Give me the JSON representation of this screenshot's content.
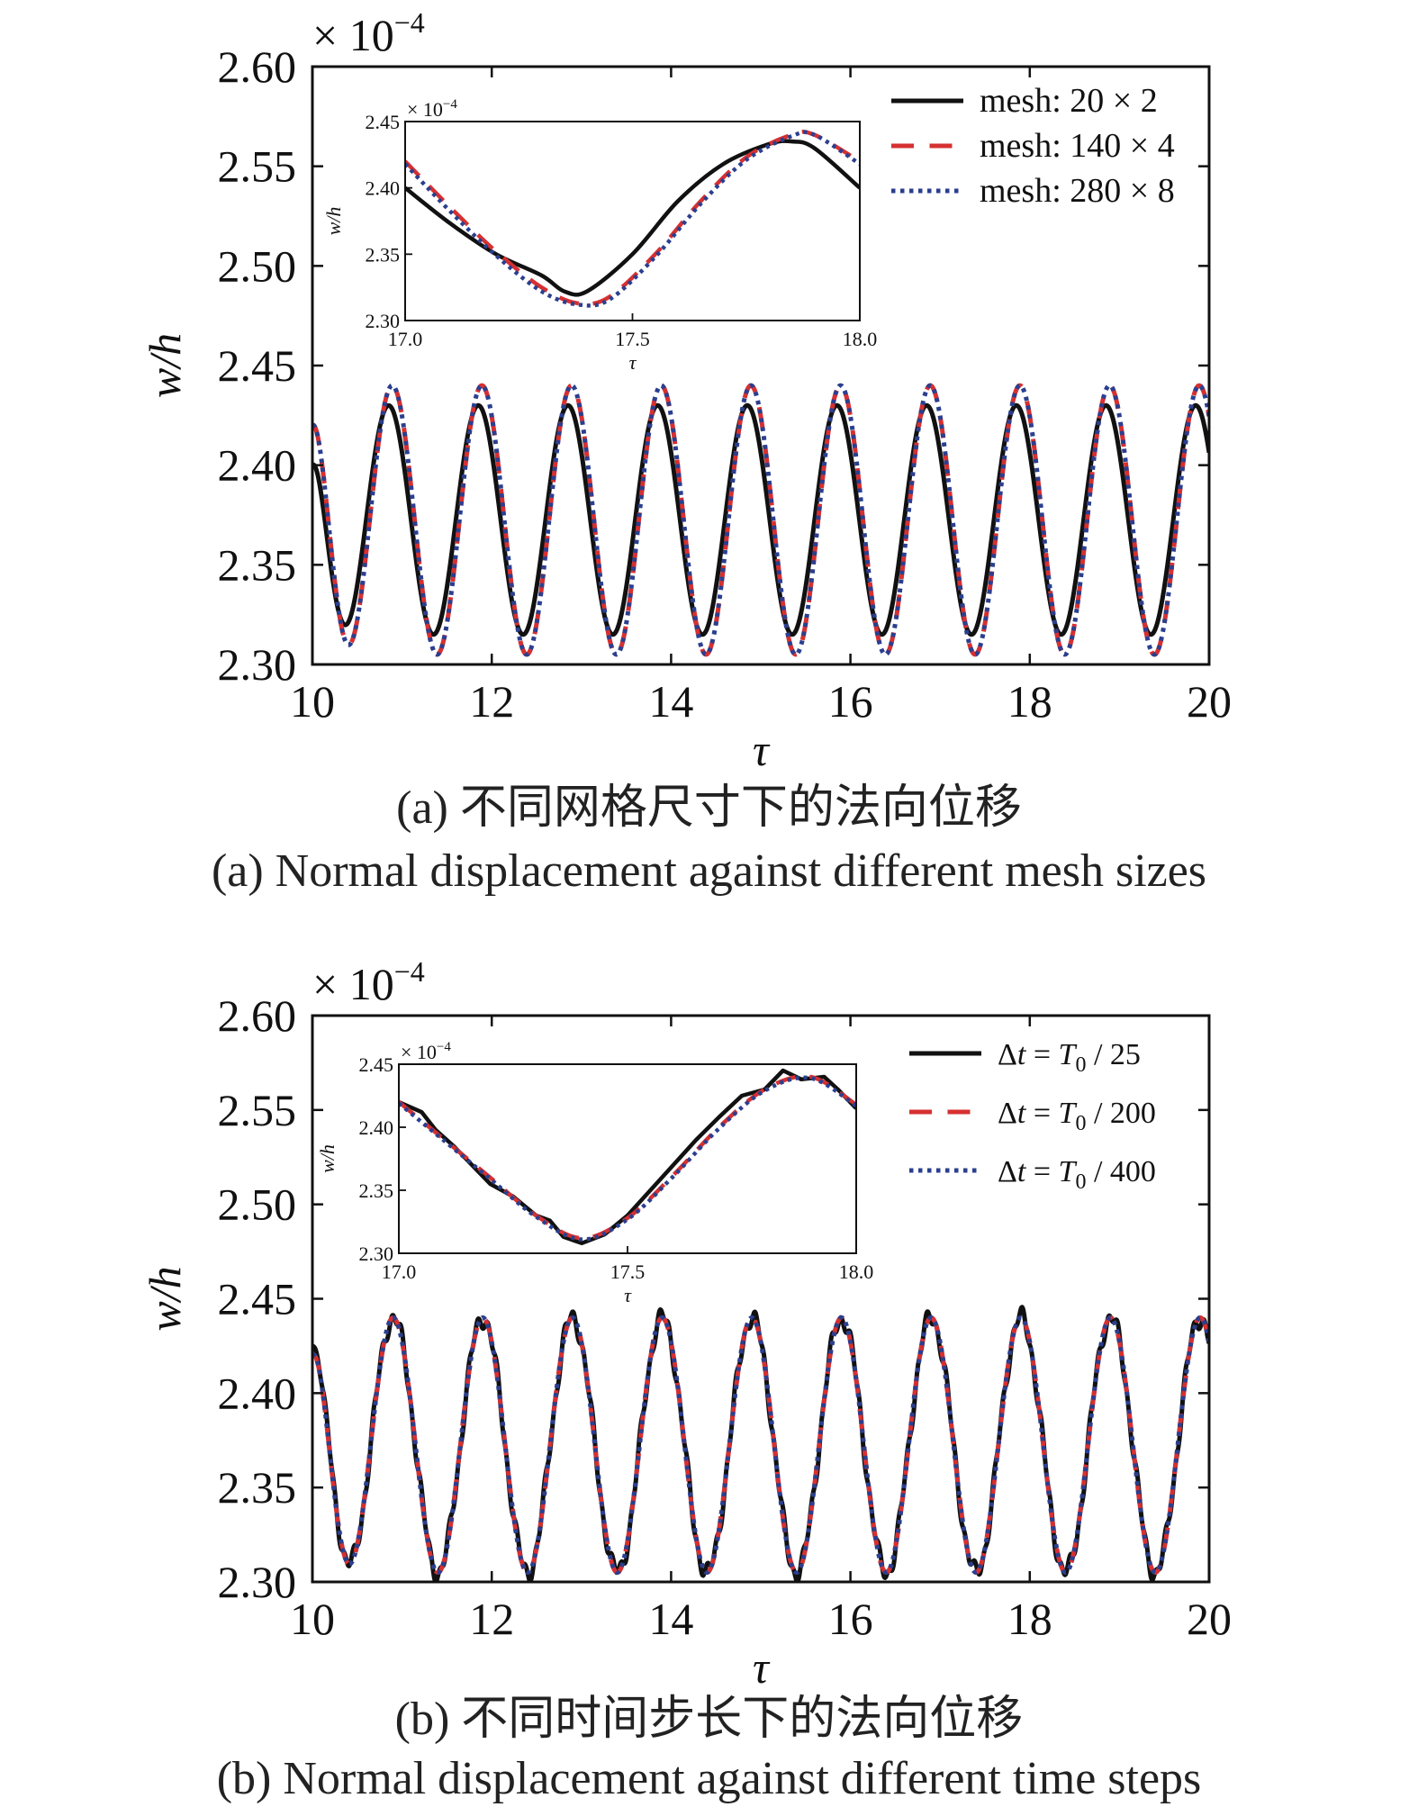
{
  "chart_data": [
    {
      "type": "line",
      "caption_zh": "(a) 不同网格尺寸下的法向位移",
      "caption_en": "(a) Normal displacement against different mesh sizes",
      "xlabel": "τ",
      "ylabel": "w/h",
      "multiplier": "× 10",
      "multiplier_exp": "−4",
      "xlim": [
        10,
        20
      ],
      "ylim": [
        2.3,
        2.6
      ],
      "xticks": [
        "10",
        "12",
        "14",
        "16",
        "18",
        "20"
      ],
      "yticks": [
        "2.30",
        "2.35",
        "2.40",
        "2.45",
        "2.50",
        "2.55",
        "2.60"
      ],
      "legend_position": "top-right",
      "series": [
        {
          "name": "mesh: 20 × 2",
          "color": "#111111",
          "style": "solid",
          "period": 1.0,
          "phase": 10.85,
          "max": 2.43,
          "min": 2.315,
          "start": 2.4,
          "noise": 0
        },
        {
          "name": "mesh: 140 × 4",
          "color": "#d63031",
          "style": "dashed",
          "period": 1.0,
          "phase": 10.89,
          "max": 2.44,
          "min": 2.305,
          "start": 2.42,
          "noise": 0
        },
        {
          "name": "mesh: 280 × 8",
          "color": "#2b3f8f",
          "style": "dotted",
          "period": 1.0,
          "phase": 10.89,
          "max": 2.44,
          "min": 2.305,
          "start": 2.42,
          "noise": 0
        }
      ],
      "inset": {
        "xlabel": "τ",
        "ylabel": "w/h",
        "multiplier": "× 10",
        "multiplier_exp": "−4",
        "xlim": [
          17.0,
          18.0
        ],
        "ylim": [
          2.3,
          2.45
        ],
        "xticks": [
          "17.0",
          "17.5",
          "18.0"
        ],
        "yticks": [
          "2.30",
          "2.35",
          "2.40",
          "2.45"
        ],
        "series": [
          {
            "name": "mesh: 20 × 2",
            "x": [
              17.0,
              17.1,
              17.2,
              17.3,
              17.35,
              17.4,
              17.5,
              17.6,
              17.7,
              17.8,
              17.85,
              17.9,
              18.0
            ],
            "y": [
              2.4,
              2.373,
              2.35,
              2.334,
              2.322,
              2.322,
              2.35,
              2.39,
              2.418,
              2.433,
              2.435,
              2.43,
              2.4
            ]
          },
          {
            "name": "mesh: 140 × 4",
            "x": [
              17.0,
              17.1,
              17.2,
              17.3,
              17.38,
              17.45,
              17.55,
              17.65,
              17.75,
              17.85,
              17.9,
              18.0
            ],
            "y": [
              2.42,
              2.385,
              2.352,
              2.325,
              2.313,
              2.318,
              2.35,
              2.39,
              2.423,
              2.44,
              2.44,
              2.42
            ]
          },
          {
            "name": "mesh: 280 × 8",
            "x": [
              17.0,
              17.1,
              17.2,
              17.3,
              17.38,
              17.45,
              17.55,
              17.65,
              17.75,
              17.85,
              17.9,
              18.0
            ],
            "y": [
              2.418,
              2.382,
              2.349,
              2.322,
              2.312,
              2.316,
              2.348,
              2.388,
              2.421,
              2.439,
              2.44,
              2.418
            ]
          }
        ]
      }
    },
    {
      "type": "line",
      "caption_zh": "(b) 不同时间步长下的法向位移",
      "caption_en": "(b) Normal displacement against different time steps",
      "xlabel": "τ",
      "ylabel": "w/h",
      "multiplier": "× 10",
      "multiplier_exp": "−4",
      "xlim": [
        10,
        20
      ],
      "ylim": [
        2.3,
        2.6
      ],
      "xticks": [
        "10",
        "12",
        "14",
        "16",
        "18",
        "20"
      ],
      "yticks": [
        "2.30",
        "2.35",
        "2.40",
        "2.45",
        "2.50",
        "2.55",
        "2.60"
      ],
      "legend_position": "top-right",
      "series": [
        {
          "name": "Δt = T0 / 25",
          "legend_parts": [
            "Δ",
            "t",
            " = ",
            "T",
            "0",
            " / 25"
          ],
          "color": "#111111",
          "style": "solid",
          "period": 1.0,
          "phase": 10.9,
          "max": 2.44,
          "min": 2.305,
          "start": 2.425,
          "noise": 0.006
        },
        {
          "name": "Δt = T0 / 200",
          "legend_parts": [
            "Δ",
            "t",
            " = ",
            "T",
            "0",
            " / 200"
          ],
          "color": "#d63031",
          "style": "dashed",
          "period": 1.0,
          "phase": 10.9,
          "max": 2.44,
          "min": 2.305,
          "start": 2.42,
          "noise": 0
        },
        {
          "name": "Δt = T0 / 400",
          "legend_parts": [
            "Δ",
            "t",
            " = ",
            "T",
            "0",
            " / 400"
          ],
          "color": "#2b3f8f",
          "style": "dotted",
          "period": 1.0,
          "phase": 10.9,
          "max": 2.44,
          "min": 2.305,
          "start": 2.42,
          "noise": 0
        }
      ],
      "inset": {
        "xlabel": "τ",
        "ylabel": "w/h",
        "multiplier": "× 10",
        "multiplier_exp": "−4",
        "xlim": [
          17.0,
          18.0
        ],
        "ylim": [
          2.3,
          2.45
        ],
        "xticks": [
          "17.0",
          "17.5",
          "18.0"
        ],
        "yticks": [
          "2.30",
          "2.35",
          "2.40",
          "2.45"
        ],
        "series": [
          {
            "name": "Δt = T0 / 25",
            "x": [
              17.0,
              17.05,
              17.08,
              17.12,
              17.16,
              17.2,
              17.25,
              17.3,
              17.33,
              17.36,
              17.4,
              17.45,
              17.5,
              17.55,
              17.6,
              17.65,
              17.7,
              17.75,
              17.8,
              17.84,
              17.88,
              17.93,
              17.96,
              18.0
            ],
            "y": [
              2.42,
              2.412,
              2.398,
              2.385,
              2.37,
              2.355,
              2.345,
              2.33,
              2.326,
              2.313,
              2.308,
              2.315,
              2.33,
              2.35,
              2.37,
              2.39,
              2.408,
              2.425,
              2.43,
              2.445,
              2.438,
              2.44,
              2.43,
              2.415
            ]
          },
          {
            "name": "Δt = T0 / 200",
            "x": [
              17.0,
              17.1,
              17.2,
              17.3,
              17.4,
              17.5,
              17.6,
              17.7,
              17.8,
              17.9,
              18.0
            ],
            "y": [
              2.42,
              2.39,
              2.36,
              2.33,
              2.312,
              2.328,
              2.362,
              2.4,
              2.43,
              2.44,
              2.418
            ]
          },
          {
            "name": "Δt = T0 / 400",
            "x": [
              17.0,
              17.1,
              17.2,
              17.3,
              17.4,
              17.5,
              17.6,
              17.7,
              17.8,
              17.9,
              18.0
            ],
            "y": [
              2.419,
              2.389,
              2.359,
              2.329,
              2.311,
              2.327,
              2.361,
              2.399,
              2.429,
              2.439,
              2.417
            ]
          }
        ]
      }
    }
  ]
}
